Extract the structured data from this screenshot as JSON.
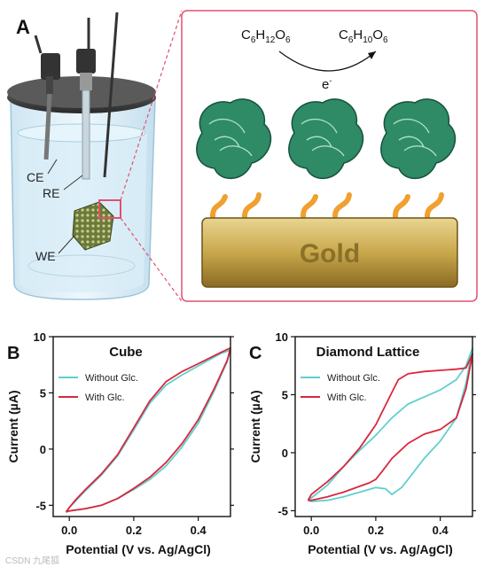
{
  "panelA": {
    "letter": "A",
    "labels": {
      "ce": "CE",
      "re": "RE",
      "we": "WE"
    },
    "reaction": {
      "reactant": {
        "base": "C",
        "sub1": "6",
        "mid1": "H",
        "sub2": "12",
        "mid2": "O",
        "sub3": "6"
      },
      "product": {
        "base": "C",
        "sub1": "6",
        "mid1": "H",
        "sub2": "10",
        "mid2": "O",
        "sub3": "6"
      },
      "electron": "e",
      "electron_sup": "-"
    },
    "gold_label": "Gold",
    "colors": {
      "protein": "#1f7a5c",
      "linker": "#f0a030",
      "gold": "#c8a84e",
      "callout": "#e05070"
    }
  },
  "chart_data": [
    {
      "panel": "B",
      "type": "line",
      "title": "Cube",
      "xlabel": "Potential (V vs. Ag/AgCl)",
      "ylabel": "Current (µA)",
      "xlim": [
        -0.05,
        0.5
      ],
      "ylim": [
        -6,
        10
      ],
      "xticks": [
        "0.0",
        "0.2",
        "0.4"
      ],
      "xtick_values": [
        0.0,
        0.2,
        0.4
      ],
      "yticks": [
        "-5",
        "0",
        "5",
        "10"
      ],
      "ytick_values": [
        -5,
        0,
        5,
        10
      ],
      "legend_position": "top-left",
      "series": [
        {
          "name": "Without Glc.",
          "color": "#5fcfcf",
          "x": [
            -0.01,
            0.0,
            0.05,
            0.1,
            0.15,
            0.2,
            0.25,
            0.3,
            0.35,
            0.4,
            0.45,
            0.49,
            0.5,
            0.47,
            0.4,
            0.35,
            0.3,
            0.25,
            0.2,
            0.15,
            0.1,
            0.05,
            0.02,
            0.0,
            -0.01
          ],
          "y": [
            -5.6,
            -5.5,
            -5.3,
            -5.0,
            -4.4,
            -3.6,
            -2.7,
            -1.5,
            0.2,
            2.3,
            5.2,
            7.8,
            8.8,
            8.5,
            7.4,
            6.6,
            5.7,
            4.1,
            1.7,
            -0.6,
            -2.3,
            -3.7,
            -4.6,
            -5.2,
            -5.6
          ]
        },
        {
          "name": "With Glc.",
          "color": "#d8283c",
          "x": [
            -0.01,
            0.0,
            0.05,
            0.1,
            0.15,
            0.2,
            0.25,
            0.3,
            0.35,
            0.4,
            0.45,
            0.49,
            0.5,
            0.47,
            0.4,
            0.35,
            0.3,
            0.25,
            0.2,
            0.15,
            0.1,
            0.05,
            0.02,
            0.0,
            -0.01
          ],
          "y": [
            -5.6,
            -5.5,
            -5.3,
            -5.0,
            -4.4,
            -3.5,
            -2.5,
            -1.2,
            0.5,
            2.6,
            5.4,
            7.9,
            9.0,
            8.6,
            7.6,
            6.9,
            6.0,
            4.3,
            1.9,
            -0.5,
            -2.2,
            -3.6,
            -4.5,
            -5.2,
            -5.6
          ]
        }
      ]
    },
    {
      "panel": "C",
      "type": "line",
      "title": "Diamond Lattice",
      "xlabel": "Potential (V vs. Ag/AgCl)",
      "ylabel": "Current (µA)",
      "xlim": [
        -0.05,
        0.5
      ],
      "ylim": [
        -5.5,
        10
      ],
      "xticks": [
        "0.0",
        "0.2",
        "0.4"
      ],
      "xtick_values": [
        0.0,
        0.2,
        0.4
      ],
      "yticks": [
        "-5",
        "0",
        "5",
        "10"
      ],
      "ytick_values": [
        -5,
        0,
        5,
        10
      ],
      "legend_position": "top-left",
      "series": [
        {
          "name": "Without Glc.",
          "color": "#5fcfcf",
          "x": [
            -0.01,
            0.0,
            0.05,
            0.1,
            0.15,
            0.2,
            0.23,
            0.25,
            0.28,
            0.3,
            0.35,
            0.4,
            0.45,
            0.48,
            0.5,
            0.48,
            0.45,
            0.4,
            0.35,
            0.3,
            0.25,
            0.2,
            0.15,
            0.1,
            0.05,
            0.0,
            -0.01
          ],
          "y": [
            -4.1,
            -4.2,
            -4.1,
            -3.8,
            -3.4,
            -3.0,
            -3.1,
            -3.6,
            -3.0,
            -2.3,
            -0.5,
            1.0,
            3.0,
            6.0,
            9.0,
            7.5,
            6.3,
            5.4,
            4.8,
            4.2,
            3.0,
            1.5,
            0.2,
            -1.2,
            -2.8,
            -3.9,
            -4.1
          ]
        },
        {
          "name": "With Glc.",
          "color": "#d8283c",
          "x": [
            -0.01,
            0.0,
            0.05,
            0.1,
            0.15,
            0.18,
            0.2,
            0.22,
            0.25,
            0.3,
            0.35,
            0.4,
            0.45,
            0.48,
            0.5,
            0.48,
            0.45,
            0.4,
            0.35,
            0.3,
            0.27,
            0.25,
            0.2,
            0.15,
            0.1,
            0.05,
            0.0,
            -0.01
          ],
          "y": [
            -4.1,
            -4.1,
            -3.8,
            -3.4,
            -2.9,
            -2.6,
            -2.3,
            -1.6,
            -0.5,
            0.8,
            1.6,
            2.0,
            3.0,
            5.5,
            8.5,
            7.3,
            7.2,
            7.1,
            7.0,
            6.8,
            6.3,
            5.2,
            2.4,
            0.4,
            -1.2,
            -2.5,
            -3.6,
            -4.1
          ]
        }
      ]
    }
  ],
  "watermark": "CSDN 九尾狐"
}
